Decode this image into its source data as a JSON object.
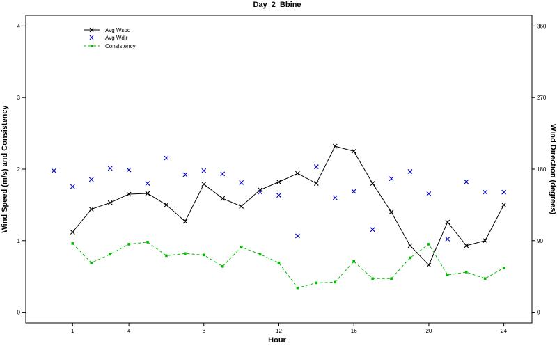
{
  "chart_data": {
    "type": "line",
    "title": "Day_2_Bbine",
    "xlabel": "Hour",
    "ylabel_left": "Wind Speed (m/s) and Consistency",
    "ylabel_right": "Wind Direction (degrees)",
    "xlim": [
      -1.5,
      25.5
    ],
    "ylim_left": [
      -0.15,
      4.15
    ],
    "ylim_right": [
      -13.5,
      373.5
    ],
    "x_ticks": [
      1,
      4,
      8,
      12,
      16,
      20,
      24
    ],
    "y_ticks_left": [
      0,
      1,
      2,
      3,
      4
    ],
    "y_ticks_right": [
      0,
      90,
      180,
      270,
      360
    ],
    "grid": false,
    "legend_position": "top-left",
    "colors": {
      "avg_wspd": "#000000",
      "avg_wdir": "#0000cc",
      "consistency": "#00bb00"
    },
    "legend": [
      "Avg Wspd",
      "Avg Wdir",
      "Consistency"
    ],
    "series": [
      {
        "name": "Avg Wspd",
        "axis": "left",
        "style": "line-x",
        "x": [
          1,
          2,
          3,
          4,
          5,
          6,
          7,
          8,
          9,
          10,
          11,
          12,
          13,
          14,
          15,
          16,
          17,
          18,
          19,
          20,
          21,
          22,
          23,
          24
        ],
        "y": [
          1.12,
          1.44,
          1.53,
          1.65,
          1.66,
          1.5,
          1.27,
          1.79,
          1.59,
          1.48,
          1.71,
          1.82,
          1.94,
          1.8,
          2.32,
          2.25,
          1.8,
          1.4,
          0.93,
          0.66,
          1.26,
          0.93,
          1.0,
          1.5
        ]
      },
      {
        "name": "Avg Wdir",
        "axis": "right",
        "style": "x-markers",
        "x": [
          0,
          1,
          2,
          3,
          4,
          5,
          6,
          7,
          8,
          9,
          10,
          11,
          12,
          13,
          14,
          15,
          16,
          17,
          18,
          19,
          20,
          21,
          22,
          23,
          24
        ],
        "y": [
          178,
          158,
          167,
          181,
          179,
          162,
          194,
          173,
          178,
          174,
          163,
          151,
          147,
          96,
          183,
          144,
          152,
          104,
          168,
          177,
          149,
          92,
          164,
          151,
          151
        ]
      },
      {
        "name": "Consistency",
        "axis": "left",
        "style": "dashed-square",
        "x": [
          1,
          2,
          3,
          4,
          5,
          6,
          7,
          8,
          9,
          10,
          11,
          12,
          13,
          14,
          15,
          16,
          17,
          18,
          19,
          20,
          21,
          22,
          23,
          24
        ],
        "y": [
          0.96,
          0.69,
          0.81,
          0.95,
          0.98,
          0.79,
          0.82,
          0.8,
          0.64,
          0.91,
          0.81,
          0.69,
          0.34,
          0.41,
          0.42,
          0.71,
          0.47,
          0.47,
          0.76,
          0.95,
          0.52,
          0.56,
          0.47,
          0.62
        ]
      }
    ]
  }
}
